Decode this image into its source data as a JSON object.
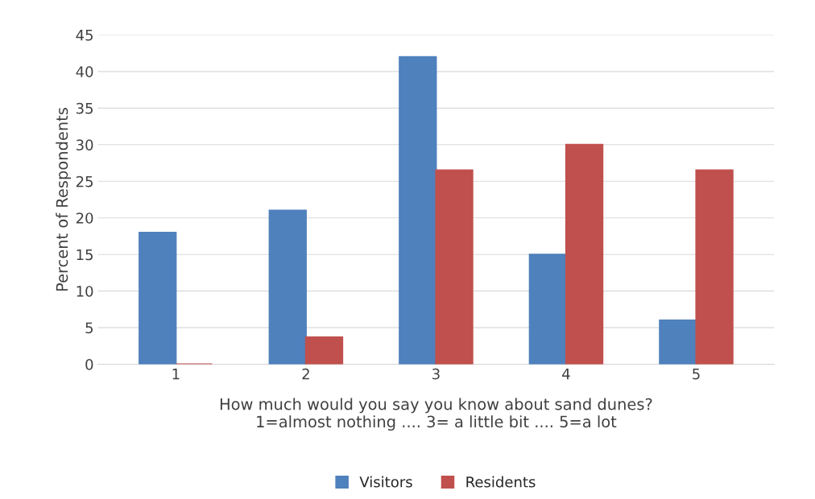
{
  "chart_data": {
    "type": "bar",
    "categories": [
      "1",
      "2",
      "3",
      "4",
      "5"
    ],
    "series": [
      {
        "name": "Visitors",
        "color": "#4f81bd",
        "values": [
          18,
          21,
          42,
          15,
          6
        ]
      },
      {
        "name": "Residents",
        "color": "#c0504d",
        "values": [
          0,
          3.7,
          26.5,
          30,
          26.5
        ]
      }
    ],
    "xlabel": "How much would you say you know about sand dunes?\n1=almost nothing .... 3= a little bit .... 5=a lot",
    "ylabel": "Percent of Respondents",
    "ylim": [
      0,
      45
    ],
    "yticks": [
      0,
      5,
      10,
      15,
      20,
      25,
      30,
      35,
      40,
      45
    ],
    "grid": "y",
    "legend": "bottom"
  }
}
